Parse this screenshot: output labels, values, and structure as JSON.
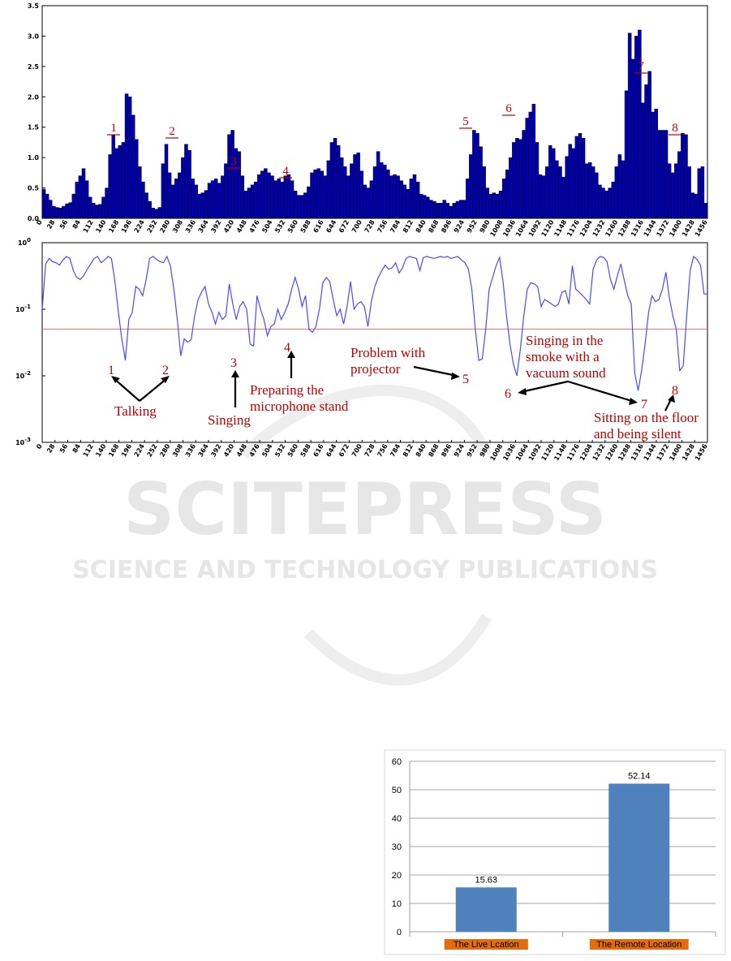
{
  "chart_data": [
    {
      "type": "bar",
      "x_tick_step": 28,
      "x_max": 1456,
      "ylim": [
        0,
        3.5
      ],
      "y_ticks": [
        "0.0",
        "0.5",
        "1.0",
        "1.5",
        "2.0",
        "2.5",
        "3.0",
        "3.5"
      ],
      "bar_color": "#0000aa",
      "values": [
        0.48,
        0.4,
        0.3,
        0.2,
        0.18,
        0.17,
        0.2,
        0.24,
        0.26,
        0.4,
        0.6,
        0.7,
        0.82,
        0.62,
        0.35,
        0.25,
        0.22,
        0.23,
        0.35,
        0.5,
        1.05,
        1.38,
        1.15,
        1.2,
        1.25,
        2.05,
        2.0,
        1.7,
        1.3,
        0.85,
        0.6,
        0.42,
        0.28,
        0.17,
        0.15,
        0.18,
        0.9,
        1.22,
        0.75,
        0.55,
        0.65,
        0.75,
        1.0,
        1.22,
        1.12,
        0.65,
        0.55,
        0.4,
        0.42,
        0.46,
        0.58,
        0.62,
        0.65,
        0.58,
        0.7,
        0.9,
        1.38,
        1.45,
        1.15,
        1.1,
        0.7,
        0.45,
        0.5,
        0.55,
        0.6,
        0.72,
        0.78,
        0.82,
        0.75,
        0.7,
        0.62,
        0.65,
        0.6,
        0.7,
        0.72,
        0.62,
        0.45,
        0.38,
        0.38,
        0.42,
        0.52,
        0.75,
        0.8,
        0.82,
        0.78,
        0.7,
        0.95,
        1.25,
        1.32,
        1.2,
        1.0,
        0.85,
        0.7,
        0.9,
        1.05,
        1.08,
        0.78,
        0.55,
        0.5,
        0.62,
        0.85,
        1.1,
        0.92,
        0.88,
        0.8,
        0.7,
        0.72,
        0.7,
        0.62,
        0.55,
        0.48,
        0.65,
        0.72,
        0.6,
        0.4,
        0.38,
        0.35,
        0.3,
        0.28,
        0.25,
        0.25,
        0.3,
        0.25,
        0.2,
        0.25,
        0.28,
        0.3,
        0.3,
        0.65,
        1.05,
        1.45,
        1.4,
        1.18,
        0.85,
        0.5,
        0.4,
        0.42,
        0.4,
        0.45,
        0.65,
        0.8,
        1.0,
        1.25,
        1.32,
        1.3,
        1.45,
        1.65,
        1.75,
        1.88,
        1.25,
        0.72,
        0.7,
        0.85,
        1.2,
        1.15,
        0.95,
        0.85,
        0.68,
        1.02,
        1.22,
        1.15,
        1.35,
        1.4,
        1.32,
        0.9,
        0.92,
        0.85,
        0.75,
        0.55,
        0.5,
        0.45,
        0.5,
        0.6,
        0.85,
        1.05,
        0.95,
        2.1,
        3.05,
        2.62,
        3.0,
        3.1,
        1.9,
        2.2,
        2.42,
        1.75,
        1.8,
        1.45,
        1.45,
        1.45,
        0.9,
        0.75,
        0.9,
        1.1,
        1.4,
        1.38,
        0.85,
        0.42,
        0.4,
        0.82,
        0.85,
        0.25
      ],
      "annotations": [
        "1",
        "2",
        "3",
        "4",
        "5",
        "6",
        "7",
        "8"
      ]
    },
    {
      "type": "line",
      "y_scale": "log",
      "ylim": [
        0.001,
        1
      ],
      "x_tick_step": 28,
      "x_max": 1456,
      "threshold": 0.05,
      "line_color": "#4a4aff",
      "threshold_color": "#ff6666",
      "values": [
        0.1,
        0.48,
        0.58,
        0.52,
        0.5,
        0.46,
        0.55,
        0.62,
        0.58,
        0.38,
        0.3,
        0.28,
        0.32,
        0.4,
        0.48,
        0.58,
        0.62,
        0.5,
        0.55,
        0.62,
        0.58,
        0.26,
        0.09,
        0.035,
        0.017,
        0.07,
        0.09,
        0.22,
        0.2,
        0.16,
        0.28,
        0.58,
        0.62,
        0.56,
        0.52,
        0.5,
        0.62,
        0.45,
        0.2,
        0.07,
        0.02,
        0.036,
        0.032,
        0.035,
        0.08,
        0.14,
        0.18,
        0.22,
        0.12,
        0.09,
        0.06,
        0.09,
        0.07,
        0.08,
        0.24,
        0.12,
        0.07,
        0.11,
        0.13,
        0.1,
        0.03,
        0.028,
        0.16,
        0.1,
        0.07,
        0.04,
        0.055,
        0.06,
        0.1,
        0.07,
        0.09,
        0.12,
        0.2,
        0.3,
        0.2,
        0.11,
        0.16,
        0.05,
        0.045,
        0.055,
        0.1,
        0.25,
        0.3,
        0.26,
        0.14,
        0.08,
        0.1,
        0.06,
        0.11,
        0.26,
        0.1,
        0.12,
        0.13,
        0.11,
        0.055,
        0.13,
        0.22,
        0.3,
        0.38,
        0.46,
        0.4,
        0.42,
        0.5,
        0.35,
        0.42,
        0.58,
        0.62,
        0.6,
        0.58,
        0.38,
        0.6,
        0.62,
        0.6,
        0.58,
        0.6,
        0.62,
        0.6,
        0.62,
        0.58,
        0.6,
        0.62,
        0.55,
        0.5,
        0.4,
        0.2,
        0.05,
        0.017,
        0.018,
        0.05,
        0.2,
        0.3,
        0.45,
        0.6,
        0.26,
        0.08,
        0.03,
        0.015,
        0.01,
        0.025,
        0.08,
        0.2,
        0.25,
        0.24,
        0.22,
        0.11,
        0.14,
        0.13,
        0.12,
        0.11,
        0.12,
        0.18,
        0.19,
        0.12,
        0.45,
        0.2,
        0.18,
        0.16,
        0.14,
        0.12,
        0.4,
        0.55,
        0.62,
        0.6,
        0.52,
        0.28,
        0.2,
        0.32,
        0.48,
        0.27,
        0.16,
        0.12,
        0.011,
        0.006,
        0.012,
        0.03,
        0.09,
        0.16,
        0.13,
        0.14,
        0.2,
        0.36,
        0.15,
        0.08,
        0.05,
        0.012,
        0.014,
        0.08,
        0.38,
        0.62,
        0.56,
        0.46,
        0.17,
        0.17
      ],
      "event_labels": [
        {
          "num": "1"
        },
        {
          "num": "2"
        },
        {
          "num": "3"
        },
        {
          "num": "4"
        },
        {
          "num": "5"
        },
        {
          "num": "6"
        },
        {
          "num": "7"
        },
        {
          "num": "8"
        }
      ],
      "annotations": {
        "talking": "Talking",
        "singing": "Singing",
        "mic_line1": "Preparing the",
        "mic_line2": "microphone stand",
        "proj_line1": "Problem with",
        "proj_line2": "projector",
        "smoke_line1": "Singing in the",
        "smoke_line2": "smoke with a",
        "smoke_line3": "vacuum sound",
        "floor_line1": "Sitting on the floor",
        "floor_line2": "and being silent"
      }
    },
    {
      "type": "bar",
      "categories": [
        "The Live Lcation",
        "The Remote Location"
      ],
      "values": [
        15.63,
        52.14
      ],
      "data_labels": [
        "15.63",
        "52.14"
      ],
      "ylim": [
        0,
        60
      ],
      "y_ticks": [
        "0",
        "10",
        "20",
        "30",
        "40",
        "50",
        "60"
      ],
      "bar_color": "#4f81bd",
      "category_label_bg": "#e46c0a"
    }
  ],
  "watermark": {
    "line1": "SCITEPRESS",
    "line2": "SCIENCE AND TECHNOLOGY PUBLICATIONS"
  }
}
